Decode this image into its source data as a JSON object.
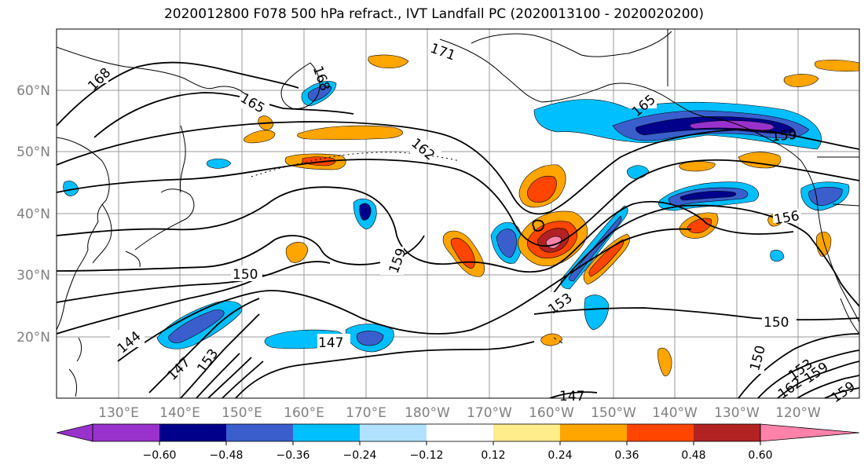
{
  "title": "2020012800 F078 500 hPa refract., IVT Landfall PC (2020013100 - 2020020200)",
  "map": {
    "lat_labels": [
      "60°N",
      "50°N",
      "40°N",
      "30°N",
      "20°N"
    ],
    "lon_labels": [
      "130°E",
      "140°E",
      "150°E",
      "160°E",
      "170°E",
      "180°W",
      "170°W",
      "160°W",
      "150°W",
      "140°W",
      "130°W",
      "120°W"
    ],
    "contour_labels": [
      "168",
      "165",
      "168",
      "171",
      "165",
      "162",
      "159",
      "156",
      "159",
      "150",
      "153",
      "150",
      "144",
      "147",
      "147",
      "150",
      "153",
      "147",
      "153",
      "159",
      "162",
      "159"
    ]
  },
  "colorbar": {
    "ticks": [
      "−0.60",
      "−0.48",
      "−0.36",
      "−0.24",
      "−0.12",
      "0.12",
      "0.24",
      "0.36",
      "0.48",
      "0.60"
    ],
    "colors": [
      "#9932cc",
      "#00008b",
      "#3a5fcd",
      "#00bfff",
      "#b0e2ff",
      "#ffffff",
      "#ffec8b",
      "#ffa500",
      "#ff4500",
      "#b22222",
      "#ff82ab"
    ]
  }
}
